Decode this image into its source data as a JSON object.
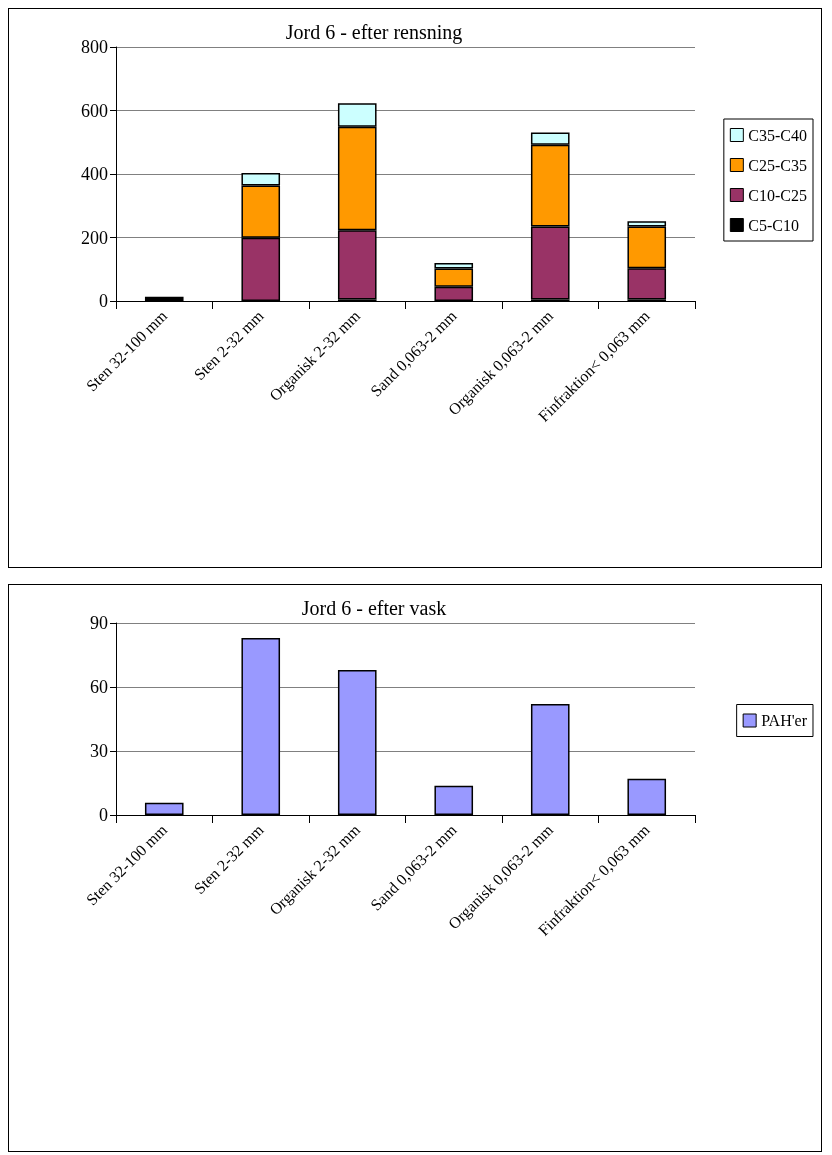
{
  "chart_data": [
    {
      "type": "bar",
      "title": "Jord 6 - efter rensning",
      "stacked": true,
      "categories": [
        "Sten 32-100 mm",
        "Sten 2-32 mm",
        "Organisk 2-32 mm",
        "Sand 0,063-2 mm",
        "Organisk 0,063-2 mm",
        "Finfraktion< 0,063 mm"
      ],
      "series": [
        {
          "name": "C5-C10",
          "color": "#000000",
          "values": [
            13,
            0,
            5,
            0,
            5,
            5
          ]
        },
        {
          "name": "C10-C25",
          "color": "#993366",
          "values": [
            0,
            199,
            218,
            45,
            230,
            98
          ]
        },
        {
          "name": "C25-C35",
          "color": "#ff9900",
          "values": [
            0,
            165,
            326,
            57,
            257,
            132
          ]
        },
        {
          "name": "C35-C40",
          "color": "#ccffff",
          "values": [
            0,
            39,
            74,
            18,
            39,
            16
          ]
        }
      ],
      "ylim": [
        0,
        800
      ],
      "yticks": [
        0,
        200,
        400,
        600,
        800
      ],
      "grid": "y",
      "legend": "right"
    },
    {
      "type": "bar",
      "title": "Jord 6 - efter vask",
      "categories": [
        "Sten 32-100 mm",
        "Sten 2-32 mm",
        "Organisk 2-32 mm",
        "Sand 0,063-2 mm",
        "Organisk 0,063-2 mm",
        "Finfraktion< 0,063 mm"
      ],
      "series": [
        {
          "name": "PAH'er",
          "color": "#9999ff",
          "values": [
            5.7,
            83,
            68,
            13.7,
            52,
            17
          ]
        }
      ],
      "ylim": [
        0,
        90
      ],
      "yticks": [
        0,
        30,
        60,
        90
      ],
      "grid": "y",
      "legend": "right"
    }
  ]
}
